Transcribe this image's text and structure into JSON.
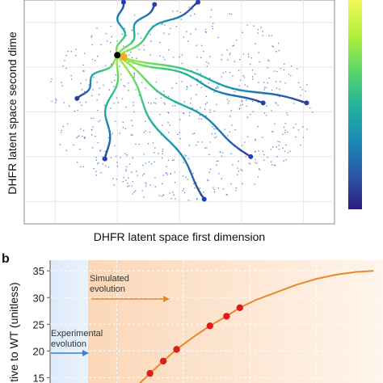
{
  "panel_a": {
    "xlabel": "DHFR latent space first dimension",
    "ylabel": "DHFR latent space second dime",
    "colorbar": [
      "#2a1d82",
      "#2a5aa8",
      "#1c8bb6",
      "#22b49b",
      "#5fd767",
      "#b2f03a",
      "#f0f75a"
    ]
  },
  "chart_data": [
    {
      "type": "scatter",
      "panel": "a",
      "title": "",
      "xlabel": "DHFR latent space first dimension",
      "ylabel": "DHFR latent space second dime",
      "grid": true,
      "xlim": [
        0,
        10
      ],
      "ylim": [
        0,
        10
      ],
      "origin": {
        "x": 3.0,
        "y": 7.5
      },
      "trajectory_endpoints": [
        {
          "x": 1.7,
          "y": 5.6
        },
        {
          "x": 3.2,
          "y": 9.9
        },
        {
          "x": 4.2,
          "y": 9.8
        },
        {
          "x": 5.6,
          "y": 9.9
        },
        {
          "x": 7.7,
          "y": 5.4
        },
        {
          "x": 9.1,
          "y": 5.4
        },
        {
          "x": 2.6,
          "y": 2.9
        },
        {
          "x": 5.8,
          "y": 1.1
        },
        {
          "x": 7.3,
          "y": 3.0
        }
      ],
      "colors": {
        "start_point": "#000000",
        "start_marker": "#f5a623",
        "endpoint": "#1f3fb5",
        "background_points": "#3a6fc4"
      }
    },
    {
      "type": "line",
      "panel": "b",
      "panel_label": "b",
      "title": "",
      "xlabel": "",
      "ylabel": "…tive to WT (unitless)",
      "ylim": [
        14,
        37
      ],
      "yticks": [
        15,
        20,
        25,
        30,
        35
      ],
      "xlim": [
        0,
        100
      ],
      "grid": true,
      "series": [
        {
          "points": [
            {
              "x": 27,
              "y": 14.0
            },
            {
              "x": 30,
              "y": 15.8
            },
            {
              "x": 34,
              "y": 18.1
            },
            {
              "x": 38,
              "y": 20.3
            },
            {
              "x": 43,
              "y": 22.6
            },
            {
              "x": 48,
              "y": 24.7
            },
            {
              "x": 53,
              "y": 26.5
            },
            {
              "x": 57,
              "y": 28.1
            },
            {
              "x": 62,
              "y": 29.6
            },
            {
              "x": 68,
              "y": 31.0
            },
            {
              "x": 74,
              "y": 32.4
            },
            {
              "x": 80,
              "y": 33.5
            },
            {
              "x": 86,
              "y": 34.3
            },
            {
              "x": 92,
              "y": 34.8
            },
            {
              "x": 97,
              "y": 35.0
            }
          ],
          "markers": [
            {
              "x": 30,
              "y": 15.8
            },
            {
              "x": 34,
              "y": 18.1
            },
            {
              "x": 38,
              "y": 20.3
            },
            {
              "x": 48,
              "y": 24.7
            },
            {
              "x": 53,
              "y": 26.5
            },
            {
              "x": 57,
              "y": 28.1
            }
          ]
        }
      ],
      "regions": [
        {
          "name": "Experimental evolution",
          "x0": 0,
          "x1": 26
        },
        {
          "name": "Simulated evolution",
          "x0": 26,
          "x1": 100
        }
      ],
      "colors": {
        "line": "#e8892a",
        "marker": "#e01b1b",
        "experimental_band": "#e3eefb",
        "simulated_band": "#fde3cc",
        "experimental_arrow": "#3e7fd0",
        "simulated_arrow": "#e8892a"
      }
    }
  ],
  "panel_b": {
    "label": "b",
    "ylabel": "…tive to WT (unitless)",
    "simulated_label": [
      "Simulated",
      "evolution"
    ],
    "experimental_label": [
      "Experimental",
      "evolution"
    ],
    "yticks": [
      "15",
      "20",
      "25",
      "30",
      "35"
    ]
  }
}
